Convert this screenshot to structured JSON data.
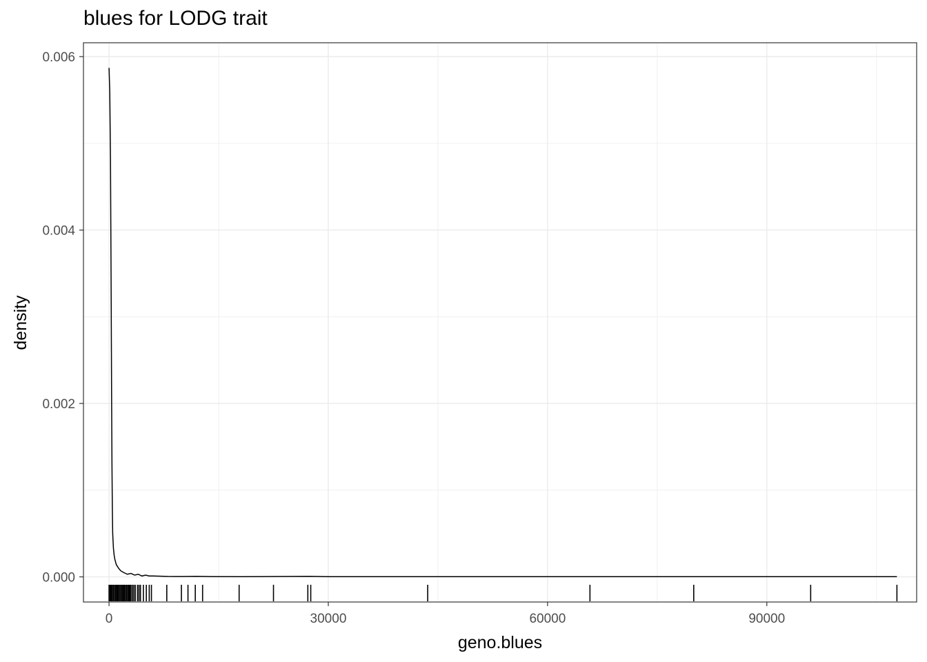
{
  "chart_data": {
    "type": "line",
    "title": "blues for LODG trait",
    "xlabel": "geno.blues",
    "ylabel": "density",
    "xlim": [
      -3500,
      110500
    ],
    "ylim": [
      -0.00029,
      0.00616
    ],
    "xticks": [
      0,
      30000,
      60000,
      90000
    ],
    "xtick_labels": [
      "0",
      "30000",
      "60000",
      "90000"
    ],
    "yticks": [
      0.0,
      0.002,
      0.004,
      0.006
    ],
    "ytick_labels": [
      "0.000",
      "0.002",
      "0.004",
      "0.006"
    ],
    "grid": true,
    "legend": "none",
    "series": [
      {
        "x": [
          0,
          100,
          200,
          300,
          350,
          400,
          450,
          500,
          600,
          700,
          800,
          1000,
          1300,
          1600,
          2000,
          2500,
          3000,
          3500,
          4000,
          4500,
          5000,
          5500,
          6000,
          8000,
          10000,
          12000,
          14000,
          18000,
          22800,
          27500,
          30000,
          43500,
          65800,
          80200,
          96000,
          107800
        ],
        "y": [
          0.00587,
          0.0056,
          0.0048,
          0.0031,
          0.0021,
          0.0013,
          0.0008,
          0.0005,
          0.00033,
          0.00025,
          0.0002,
          0.00014,
          0.0001,
          7e-05,
          5e-05,
          3e-05,
          4e-05,
          2e-05,
          3e-05,
          1e-05,
          2e-05,
          1e-05,
          1e-05,
          5e-06,
          4e-06,
          6e-06,
          3e-06,
          2e-06,
          4e-06,
          6e-06,
          2e-06,
          2e-06,
          2e-06,
          2e-06,
          2e-06,
          2e-06
        ]
      }
    ],
    "rug": [
      0,
      150,
      300,
      450,
      600,
      750,
      900,
      1050,
      1200,
      1350,
      1500,
      1650,
      1800,
      1950,
      2100,
      2250,
      2400,
      2550,
      2700,
      2850,
      3000,
      3200,
      3400,
      3600,
      3900,
      4100,
      4300,
      4700,
      5100,
      5500,
      5800,
      7900,
      9900,
      10800,
      11800,
      12800,
      17800,
      22500,
      27200,
      27600,
      43600,
      65800,
      80000,
      96000,
      107800
    ]
  }
}
